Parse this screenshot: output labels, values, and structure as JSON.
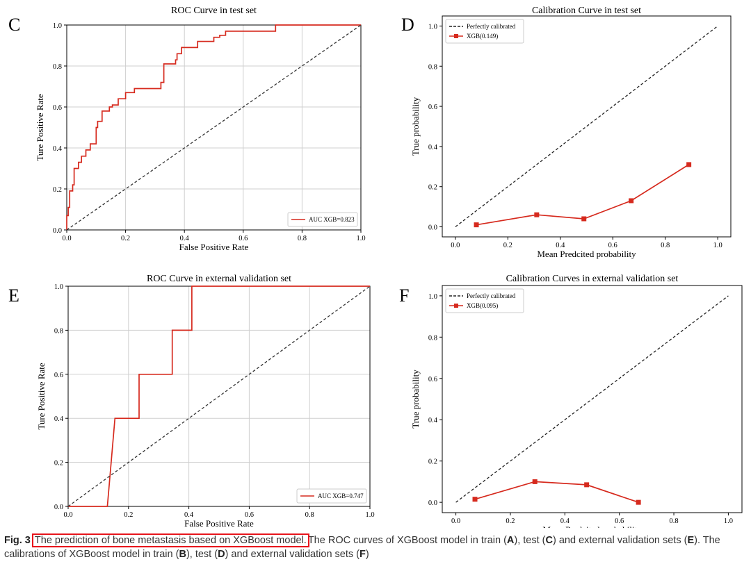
{
  "chart_data": [
    {
      "panel": "C",
      "type": "line",
      "title": "ROC Curve in test set",
      "xlabel": "False Positive Rate",
      "ylabel": "Ture Positive Rate",
      "xlim": [
        0,
        1
      ],
      "ylim": [
        0,
        1
      ],
      "xticks": [
        "0.0",
        "0.2",
        "0.4",
        "0.6",
        "0.8",
        "1.0"
      ],
      "yticks": [
        "0.0",
        "0.2",
        "0.4",
        "0.6",
        "0.8",
        "1.0"
      ],
      "grid": true,
      "legend_position": "lower-right",
      "series": [
        {
          "name": "AUC XGB=0.823",
          "color": "#d62a1e",
          "style": "solid",
          "x": [
            0,
            0,
            0.005,
            0.005,
            0.01,
            0.01,
            0.02,
            0.02,
            0.025,
            0.025,
            0.04,
            0.04,
            0.05,
            0.05,
            0.065,
            0.065,
            0.08,
            0.08,
            0.1,
            0.1,
            0.105,
            0.105,
            0.12,
            0.12,
            0.145,
            0.145,
            0.155,
            0.155,
            0.175,
            0.175,
            0.2,
            0.2,
            0.23,
            0.23,
            0.32,
            0.32,
            0.33,
            0.33,
            0.37,
            0.37,
            0.375,
            0.375,
            0.39,
            0.39,
            0.445,
            0.445,
            0.5,
            0.5,
            0.52,
            0.52,
            0.54,
            0.54,
            0.71,
            0.71,
            1.0
          ],
          "y": [
            0,
            0.07,
            0.07,
            0.11,
            0.11,
            0.19,
            0.19,
            0.22,
            0.22,
            0.3,
            0.3,
            0.33,
            0.33,
            0.36,
            0.36,
            0.39,
            0.39,
            0.42,
            0.42,
            0.5,
            0.5,
            0.53,
            0.53,
            0.58,
            0.58,
            0.6,
            0.6,
            0.61,
            0.61,
            0.64,
            0.64,
            0.67,
            0.67,
            0.69,
            0.69,
            0.72,
            0.72,
            0.81,
            0.81,
            0.83,
            0.83,
            0.86,
            0.86,
            0.89,
            0.89,
            0.92,
            0.92,
            0.94,
            0.94,
            0.95,
            0.95,
            0.97,
            0.97,
            1.0,
            1.0
          ]
        },
        {
          "name": "",
          "color": "#333333",
          "style": "dashed",
          "x": [
            0,
            1
          ],
          "y": [
            0,
            1
          ]
        }
      ]
    },
    {
      "panel": "D",
      "type": "line",
      "title": "Calibration Curve in test set",
      "xlabel": "Mean Predcited probability",
      "ylabel": "True probability",
      "xlim": [
        -0.05,
        1.05
      ],
      "ylim": [
        -0.05,
        1.05
      ],
      "xticks": [
        "0.0",
        "0.2",
        "0.4",
        "0.6",
        "0.8",
        "1.0"
      ],
      "yticks": [
        "0.0",
        "0.2",
        "0.4",
        "0.6",
        "0.8",
        "1.0"
      ],
      "grid": false,
      "legend_position": "top-left",
      "series": [
        {
          "name": "Perfectly calibrated",
          "color": "#222222",
          "style": "dashed",
          "x": [
            0,
            1
          ],
          "y": [
            0,
            1
          ]
        },
        {
          "name": "XGB(0.149)",
          "color": "#d62a1e",
          "style": "solid",
          "marker": "square",
          "x": [
            0.08,
            0.31,
            0.49,
            0.67,
            0.89
          ],
          "y": [
            0.01,
            0.06,
            0.04,
            0.13,
            0.31
          ]
        }
      ]
    },
    {
      "panel": "E",
      "type": "line",
      "title": "ROC Curve in external validation set",
      "xlabel": "False Positive Rate",
      "ylabel": "Ture Positive Rate",
      "xlim": [
        0,
        1
      ],
      "ylim": [
        0,
        1
      ],
      "xticks": [
        "0.0",
        "0.2",
        "0.4",
        "0.6",
        "0.8",
        "1.0"
      ],
      "yticks": [
        "0.0",
        "0.2",
        "0.4",
        "0.6",
        "0.8",
        "1.0"
      ],
      "grid": true,
      "legend_position": "lower-right",
      "series": [
        {
          "name": "AUC XGB=0.747",
          "color": "#d62a1e",
          "style": "solid",
          "x": [
            0,
            0.13,
            0.155,
            0.235,
            0.235,
            0.345,
            0.345,
            0.41,
            0.41,
            1.0
          ],
          "y": [
            0,
            0,
            0.4,
            0.4,
            0.6,
            0.6,
            0.8,
            0.8,
            1.0,
            1.0
          ]
        },
        {
          "name": "",
          "color": "#333333",
          "style": "dashed",
          "x": [
            0,
            1
          ],
          "y": [
            0,
            1
          ]
        }
      ]
    },
    {
      "panel": "F",
      "type": "line",
      "title": "Calibration Curves in external validation set",
      "xlabel": "Mean Predcited probability",
      "ylabel": "True probability",
      "xlim": [
        -0.05,
        1.05
      ],
      "ylim": [
        -0.05,
        1.05
      ],
      "xticks": [
        "0.0",
        "0.2",
        "0.4",
        "0.6",
        "0.8",
        "1.0"
      ],
      "yticks": [
        "0.0",
        "0.2",
        "0.4",
        "0.6",
        "0.8",
        "1.0"
      ],
      "grid": false,
      "legend_position": "top-left",
      "series": [
        {
          "name": "Perfectly calibrated",
          "color": "#222222",
          "style": "dashed",
          "x": [
            0,
            1
          ],
          "y": [
            0,
            1
          ]
        },
        {
          "name": "XGB(0.095)",
          "color": "#d62a1e",
          "style": "solid",
          "marker": "square",
          "x": [
            0.07,
            0.29,
            0.48,
            0.67
          ],
          "y": [
            0.015,
            0.1,
            0.085,
            0.0
          ]
        }
      ]
    }
  ],
  "caption": {
    "label": "Fig. 3",
    "highlight": "The prediction of bone metastasis based on XGBoost model.",
    "text_1": "The ROC curves of XGBoost model in train (",
    "a": "A",
    "text_2": "), test (",
    "c": "C",
    "text_3": ") and external validation sets (",
    "e": "E",
    "text_4": "). The calibrations of XGBoost model in train (",
    "b": "B",
    "text_5": "), test (",
    "d": "D",
    "text_6": ") and external validation sets (",
    "f": "F",
    "text_7": ")",
    "highlight_color": "#e8141b"
  }
}
